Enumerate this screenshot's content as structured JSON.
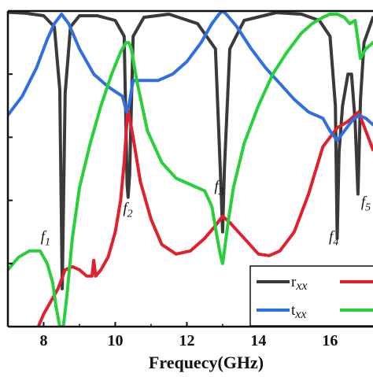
{
  "chart_data": {
    "type": "line",
    "title": "",
    "xlabel": "Frequecy(GHz)",
    "ylabel": "",
    "xlim": [
      7,
      17.2
    ],
    "ylim": [
      0,
      1
    ],
    "xticks": [
      8,
      10,
      12,
      14,
      16
    ],
    "xtick_labels": [
      "8",
      "10",
      "12",
      "14",
      "16"
    ],
    "yticks": [
      0,
      0.2,
      0.4,
      0.6,
      0.8,
      1.0
    ],
    "grid": false,
    "legend": {
      "placement": "bottom-right",
      "entries": [
        {
          "label": "r",
          "subscript": "xx",
          "color": "#3a3a3a"
        },
        {
          "label": "",
          "subscript": "",
          "color": "#e0202c"
        },
        {
          "label": "t",
          "subscript": "xx",
          "color": "#2f6fe0"
        },
        {
          "label": "",
          "subscript": "",
          "color": "#28d03a"
        }
      ]
    },
    "annotations": [
      {
        "text": "f",
        "sub": "1",
        "x": 8.05,
        "y": 0.27
      },
      {
        "text": "f",
        "sub": "2",
        "x": 10.35,
        "y": 0.36
      },
      {
        "text": "f",
        "sub": "3",
        "x": 12.9,
        "y": 0.43
      },
      {
        "text": "f",
        "sub": "4",
        "x": 16.1,
        "y": 0.27
      },
      {
        "text": "f",
        "sub": "5",
        "x": 17.0,
        "y": 0.38
      }
    ],
    "series": [
      {
        "color": "#3a3a3a",
        "x": [
          7.0,
          7.5,
          8.0,
          8.3,
          8.45,
          8.52,
          8.6,
          8.75,
          9.0,
          9.5,
          10.0,
          10.25,
          10.33,
          10.36,
          10.4,
          10.5,
          10.8,
          11.5,
          12.3,
          12.8,
          12.95,
          13.0,
          13.05,
          13.2,
          13.6,
          14.5,
          15.2,
          15.7,
          16.0,
          16.15,
          16.2,
          16.25,
          16.35,
          16.5,
          16.6,
          16.7,
          16.78,
          16.85,
          16.95,
          17.2
        ],
        "y": [
          0.996,
          0.993,
          0.985,
          0.95,
          0.75,
          0.12,
          0.74,
          0.95,
          0.985,
          0.985,
          0.97,
          0.92,
          0.45,
          0.41,
          0.48,
          0.92,
          0.98,
          0.99,
          0.96,
          0.88,
          0.45,
          0.3,
          0.5,
          0.88,
          0.97,
          0.995,
          0.99,
          0.97,
          0.92,
          0.7,
          0.28,
          0.55,
          0.7,
          0.8,
          0.8,
          0.65,
          0.42,
          0.72,
          0.9,
          0.98
        ]
      },
      {
        "color": "#e0202c",
        "x": [
          7.85,
          8.0,
          8.2,
          8.4,
          8.6,
          8.8,
          9.0,
          9.2,
          9.35,
          9.4,
          9.45,
          9.6,
          9.8,
          10.0,
          10.15,
          10.25,
          10.35,
          10.5,
          10.7,
          11.0,
          11.3,
          11.7,
          12.1,
          12.5,
          12.8,
          13.0,
          13.2,
          13.6,
          14.0,
          14.3,
          14.6,
          15.0,
          15.4,
          15.8,
          16.2,
          16.5,
          16.8,
          17.0,
          17.2
        ],
        "y": [
          0.0,
          0.04,
          0.08,
          0.12,
          0.18,
          0.19,
          0.18,
          0.16,
          0.16,
          0.21,
          0.16,
          0.18,
          0.22,
          0.3,
          0.4,
          0.52,
          0.69,
          0.6,
          0.46,
          0.34,
          0.26,
          0.23,
          0.24,
          0.28,
          0.32,
          0.35,
          0.33,
          0.28,
          0.23,
          0.225,
          0.24,
          0.3,
          0.42,
          0.57,
          0.63,
          0.65,
          0.68,
          0.62,
          0.56
        ]
      },
      {
        "color": "#2f6fe0",
        "x": [
          7.0,
          7.4,
          7.8,
          8.1,
          8.3,
          8.5,
          8.7,
          9.0,
          9.4,
          9.8,
          10.2,
          10.32,
          10.38,
          10.5,
          10.8,
          11.2,
          11.6,
          12.0,
          12.4,
          12.7,
          12.9,
          13.0,
          13.1,
          13.4,
          13.8,
          14.2,
          14.6,
          15.0,
          15.4,
          15.8,
          16.0,
          16.2,
          16.4,
          16.6,
          16.8,
          17.0,
          17.2
        ],
        "y": [
          0.67,
          0.73,
          0.82,
          0.91,
          0.96,
          0.99,
          0.96,
          0.88,
          0.8,
          0.76,
          0.73,
          0.68,
          0.7,
          0.78,
          0.78,
          0.78,
          0.8,
          0.84,
          0.9,
          0.96,
          0.99,
          1.0,
          0.99,
          0.95,
          0.88,
          0.82,
          0.77,
          0.72,
          0.68,
          0.66,
          0.62,
          0.59,
          0.62,
          0.65,
          0.67,
          0.66,
          0.64
        ]
      },
      {
        "color": "#28d03a",
        "x": [
          7.0,
          7.3,
          7.6,
          7.9,
          8.1,
          8.25,
          8.35,
          8.45,
          8.5,
          8.55,
          8.65,
          8.8,
          9.0,
          9.3,
          9.6,
          9.9,
          10.15,
          10.3,
          10.38,
          10.45,
          10.6,
          10.9,
          11.3,
          11.7,
          12.1,
          12.5,
          12.7,
          12.85,
          12.95,
          13.0,
          13.05,
          13.15,
          13.3,
          13.6,
          14.0,
          14.4,
          14.8,
          15.2,
          15.5,
          15.8,
          16.0,
          16.2,
          16.4,
          16.55,
          16.7,
          16.85,
          17.0,
          17.2
        ],
        "y": [
          0.18,
          0.22,
          0.24,
          0.24,
          0.2,
          0.14,
          0.06,
          0.0,
          0.0,
          0.0,
          0.1,
          0.28,
          0.44,
          0.58,
          0.7,
          0.8,
          0.87,
          0.9,
          0.9,
          0.88,
          0.78,
          0.62,
          0.52,
          0.47,
          0.45,
          0.43,
          0.38,
          0.28,
          0.22,
          0.2,
          0.24,
          0.33,
          0.44,
          0.58,
          0.7,
          0.8,
          0.87,
          0.93,
          0.96,
          0.98,
          0.99,
          0.99,
          0.98,
          0.96,
          0.97,
          0.85,
          0.88,
          0.9
        ]
      }
    ]
  }
}
